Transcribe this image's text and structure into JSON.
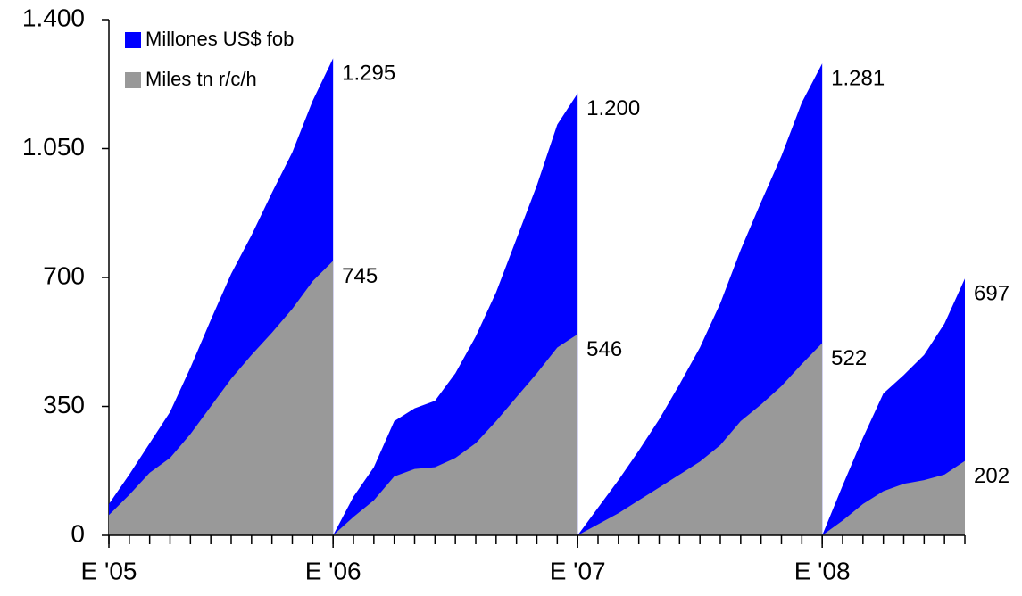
{
  "chart_data": {
    "type": "area",
    "x": [
      0,
      1,
      2,
      3,
      4,
      5,
      6,
      7,
      8,
      9,
      10,
      11,
      11,
      12,
      13,
      14,
      15,
      16,
      17,
      18,
      19,
      20,
      21,
      22,
      23,
      23,
      24,
      25,
      26,
      27,
      28,
      29,
      30,
      31,
      32,
      33,
      34,
      35,
      35,
      36,
      37,
      38,
      39,
      40,
      41,
      42
    ],
    "xlim": [
      0,
      42
    ],
    "xticks": [
      {
        "value": 0,
        "label": "E '05"
      },
      {
        "value": 11,
        "label": "E '06"
      },
      {
        "value": 23,
        "label": "E '07"
      },
      {
        "value": 35,
        "label": "E '08"
      }
    ],
    "ylim": [
      0,
      1400
    ],
    "yticks": [
      0,
      350,
      700,
      {
        "value": 1050,
        "label": "1.050"
      },
      {
        "value": 1400,
        "label": "1.400"
      }
    ],
    "legend": "top-left",
    "series": [
      {
        "name": "Millones US$ fob",
        "color": "#0000ff",
        "values": [
          85,
          165,
          250,
          335,
          455,
          585,
          710,
          815,
          930,
          1040,
          1180,
          1295,
          0,
          105,
          185,
          310,
          345,
          365,
          440,
          540,
          660,
          805,
          950,
          1115,
          1200,
          0,
          75,
          150,
          230,
          315,
          410,
          510,
          630,
          775,
          905,
          1030,
          1175,
          1281,
          0,
          135,
          265,
          385,
          435,
          490,
          575,
          697
        ],
        "value_labels": [
          null,
          null,
          null,
          null,
          null,
          null,
          null,
          null,
          null,
          null,
          null,
          "1.295",
          null,
          null,
          null,
          null,
          null,
          null,
          null,
          null,
          null,
          null,
          null,
          null,
          "1.200",
          null,
          null,
          null,
          null,
          null,
          null,
          null,
          null,
          null,
          null,
          null,
          null,
          "1.281",
          null,
          null,
          null,
          null,
          null,
          null,
          null,
          "697"
        ]
      },
      {
        "name": "Miles tn r/c/h",
        "color": "#999999",
        "values": [
          55,
          110,
          170,
          210,
          275,
          350,
          425,
          490,
          550,
          615,
          690,
          745,
          0,
          50,
          95,
          160,
          180,
          185,
          210,
          250,
          310,
          375,
          440,
          510,
          546,
          0,
          30,
          60,
          95,
          130,
          165,
          200,
          245,
          310,
          355,
          405,
          465,
          522,
          0,
          40,
          85,
          120,
          140,
          150,
          165,
          202
        ],
        "value_labels": [
          null,
          null,
          null,
          null,
          null,
          null,
          null,
          null,
          null,
          null,
          null,
          "745",
          null,
          null,
          null,
          null,
          null,
          null,
          null,
          null,
          null,
          null,
          null,
          null,
          "546",
          null,
          null,
          null,
          null,
          null,
          null,
          null,
          null,
          null,
          null,
          null,
          null,
          "522",
          null,
          null,
          null,
          null,
          null,
          null,
          null,
          "202"
        ]
      }
    ]
  }
}
